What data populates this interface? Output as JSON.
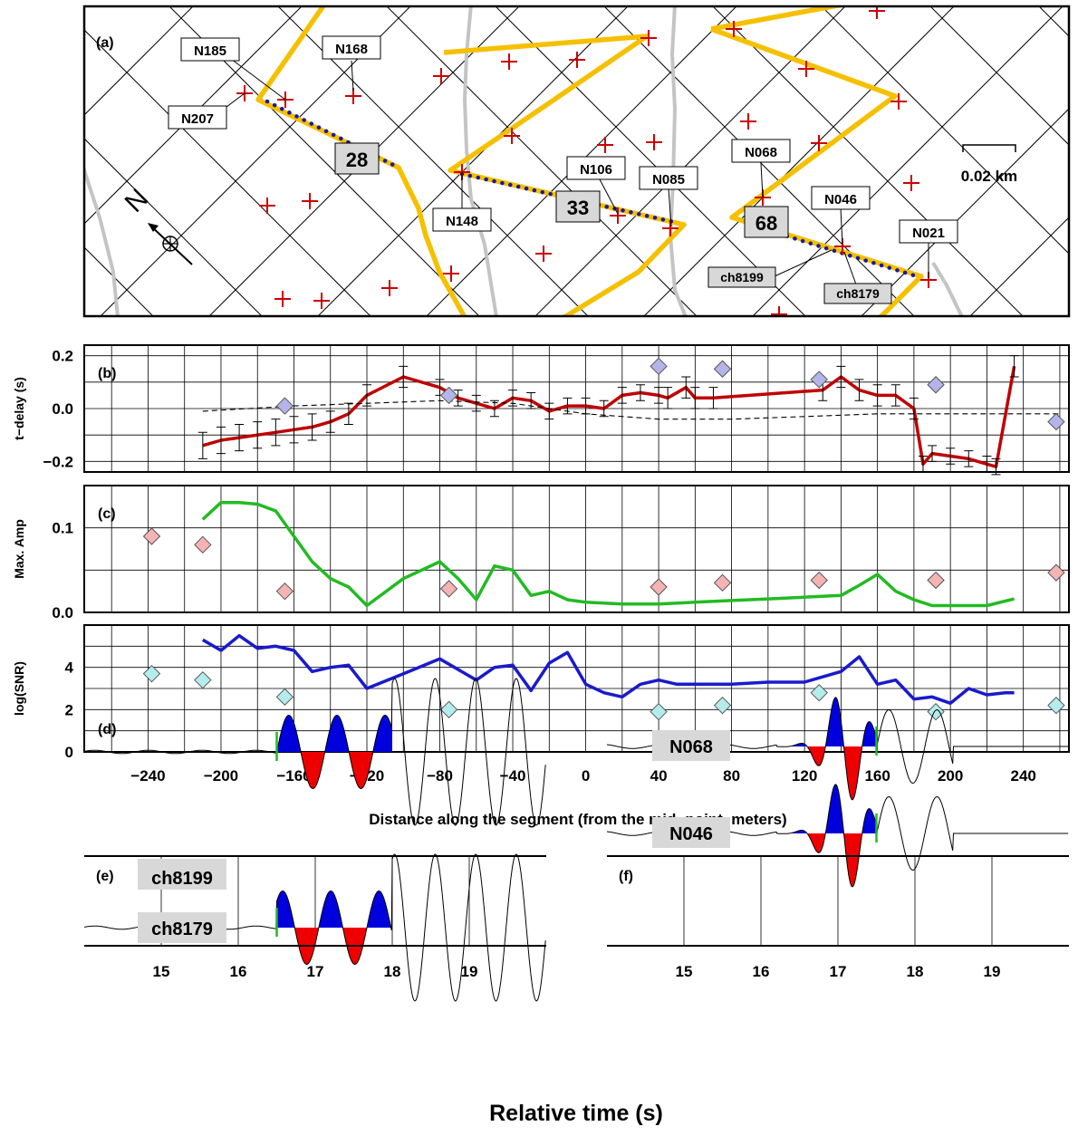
{
  "figure": {
    "panel_labels": [
      "(a)",
      "(b)",
      "(c)",
      "(d)",
      "(e)",
      "(f)"
    ],
    "xlabel_distance": "Distance along the segment (from the mid−point, meters)",
    "xlabel_time": "Relative time (s)"
  },
  "map": {
    "scale_label": "0.02 km",
    "north_label": "N",
    "segment_numbers": [
      "28",
      "33",
      "68"
    ],
    "station_labels": [
      "N185",
      "N168",
      "N207",
      "N148",
      "N106",
      "N085",
      "N068",
      "N046",
      "N021"
    ],
    "channel_labels": [
      "ch8199",
      "ch8179"
    ],
    "colors": {
      "cable": "#f5c000",
      "segment": "#1a1aa0",
      "node": "#cc0000",
      "road": "#c4c4c4",
      "grid": "#000000"
    }
  },
  "chart_data": [
    {
      "type": "line",
      "panel": "(b)",
      "ylabel": "t−delay (s)",
      "xlim": [
        -275,
        265
      ],
      "ylim": [
        -0.24,
        0.24
      ],
      "xticks": [
        -240,
        -200,
        -160,
        -120,
        -80,
        -40,
        0,
        40,
        80,
        120,
        160,
        200,
        240
      ],
      "yticks": [
        -0.2,
        0.0,
        0.2
      ],
      "ytick_labels": [
        "−0.2",
        "0.0",
        "0.2"
      ],
      "series": [
        {
          "style": "line",
          "color": "#c00000",
          "x": [
            -210,
            -200,
            -190,
            -180,
            -170,
            -160,
            -150,
            -140,
            -130,
            -120,
            -100,
            -80,
            -70,
            -60,
            -50,
            -40,
            -30,
            -20,
            -10,
            0,
            10,
            20,
            30,
            40,
            45,
            55,
            60,
            70,
            130,
            140,
            150,
            160,
            170,
            180,
            185,
            190,
            200,
            210,
            220,
            225,
            235
          ],
          "y": [
            -0.14,
            -0.12,
            -0.11,
            -0.1,
            -0.09,
            -0.08,
            -0.07,
            -0.05,
            -0.02,
            0.05,
            0.12,
            0.08,
            0.04,
            0.02,
            0.0,
            0.04,
            0.03,
            -0.01,
            0.01,
            0.01,
            0.0,
            0.05,
            0.06,
            0.05,
            0.04,
            0.08,
            0.04,
            0.04,
            0.07,
            0.12,
            0.07,
            0.05,
            0.05,
            0.0,
            -0.21,
            -0.17,
            -0.18,
            -0.19,
            -0.21,
            -0.22,
            0.16
          ]
        },
        {
          "style": "errorbar",
          "color": "#000000",
          "x": [
            -210,
            -200,
            -190,
            -180,
            -170,
            -160,
            -150,
            -140,
            -130,
            -120,
            -100,
            -80,
            -70,
            -60,
            -50,
            -40,
            -30,
            -20,
            -10,
            0,
            10,
            20,
            30,
            40,
            45,
            55,
            60,
            70,
            130,
            140,
            150,
            160,
            170,
            180,
            185,
            190,
            200,
            210,
            220,
            225,
            235
          ],
          "y": [
            -0.14,
            -0.12,
            -0.11,
            -0.1,
            -0.09,
            -0.08,
            -0.07,
            -0.05,
            -0.02,
            0.05,
            0.12,
            0.08,
            0.04,
            0.02,
            0.0,
            0.04,
            0.03,
            -0.01,
            0.01,
            0.01,
            0.0,
            0.05,
            0.06,
            0.05,
            0.04,
            0.08,
            0.04,
            0.04,
            0.07,
            0.12,
            0.07,
            0.05,
            0.05,
            0.0,
            -0.21,
            -0.17,
            -0.18,
            -0.19,
            -0.21,
            -0.22,
            0.16
          ],
          "err": [
            0.05,
            0.05,
            0.05,
            0.05,
            0.05,
            0.05,
            0.05,
            0.04,
            0.04,
            0.04,
            0.04,
            0.03,
            0.03,
            0.03,
            0.03,
            0.03,
            0.03,
            0.03,
            0.03,
            0.03,
            0.03,
            0.03,
            0.03,
            0.03,
            0.04,
            0.04,
            0.04,
            0.04,
            0.04,
            0.04,
            0.04,
            0.04,
            0.04,
            0.04,
            0.03,
            0.03,
            0.03,
            0.03,
            0.03,
            0.03,
            0.04
          ]
        },
        {
          "style": "dashed",
          "color": "#000000",
          "x": [
            -210,
            -160,
            -120,
            -80,
            -40,
            0,
            40,
            80,
            120,
            160,
            200,
            240,
            260
          ],
          "y": [
            -0.01,
            0.01,
            0.02,
            0.03,
            0.02,
            -0.02,
            -0.04,
            -0.04,
            -0.03,
            -0.02,
            -0.02,
            -0.02,
            -0.02
          ]
        },
        {
          "style": "diamond",
          "color": "#b4b4e8",
          "x": [
            -165,
            -75,
            40,
            75,
            128,
            192,
            258
          ],
          "y": [
            0.01,
            0.05,
            0.16,
            0.15,
            0.11,
            0.09,
            -0.05
          ]
        }
      ]
    },
    {
      "type": "line",
      "panel": "(c)",
      "ylabel": "Max. Amp",
      "xlim": [
        -275,
        265
      ],
      "ylim": [
        0,
        0.15
      ],
      "yticks": [
        0.0,
        0.1
      ],
      "ytick_labels": [
        "0.0",
        "0.1"
      ],
      "series": [
        {
          "style": "line",
          "color": "#22bb22",
          "x": [
            -210,
            -200,
            -190,
            -180,
            -170,
            -160,
            -150,
            -140,
            -130,
            -120,
            -100,
            -80,
            -70,
            -60,
            -50,
            -40,
            -30,
            -20,
            -10,
            0,
            20,
            40,
            60,
            80,
            100,
            120,
            140,
            150,
            160,
            170,
            180,
            190,
            200,
            210,
            220,
            235
          ],
          "y": [
            0.11,
            0.13,
            0.13,
            0.128,
            0.12,
            0.09,
            0.06,
            0.04,
            0.03,
            0.008,
            0.04,
            0.06,
            0.04,
            0.015,
            0.055,
            0.05,
            0.02,
            0.025,
            0.015,
            0.012,
            0.01,
            0.01,
            0.012,
            0.014,
            0.016,
            0.018,
            0.02,
            0.032,
            0.045,
            0.025,
            0.015,
            0.008,
            0.008,
            0.008,
            0.008,
            0.016
          ]
        },
        {
          "style": "diamond",
          "color": "#f4b4b4",
          "x": [
            -238,
            -210,
            -165,
            -75,
            40,
            75,
            128,
            192,
            258
          ],
          "y": [
            0.09,
            0.08,
            0.025,
            0.028,
            0.03,
            0.035,
            0.038,
            0.038,
            0.047
          ]
        }
      ]
    },
    {
      "type": "line",
      "panel": "(d)",
      "ylabel": "log(SNR)",
      "xlim": [
        -275,
        265
      ],
      "ylim": [
        0,
        6
      ],
      "xticks": [
        -240,
        -200,
        -160,
        -120,
        -80,
        -40,
        0,
        40,
        80,
        120,
        160,
        200,
        240
      ],
      "yticks": [
        0,
        2,
        4
      ],
      "ytick_labels": [
        "0",
        "2",
        "4"
      ],
      "series": [
        {
          "style": "line",
          "color": "#1a1acc",
          "x": [
            -210,
            -200,
            -190,
            -180,
            -170,
            -160,
            -150,
            -140,
            -130,
            -120,
            -100,
            -80,
            -60,
            -50,
            -40,
            -30,
            -20,
            -10,
            0,
            10,
            20,
            30,
            40,
            50,
            60,
            80,
            100,
            120,
            140,
            150,
            160,
            170,
            180,
            190,
            200,
            210,
            220,
            230,
            235
          ],
          "y": [
            5.3,
            4.8,
            5.5,
            4.9,
            5.0,
            4.8,
            3.8,
            4.0,
            4.1,
            3.0,
            3.7,
            4.4,
            3.4,
            4.0,
            4.1,
            2.9,
            4.2,
            4.7,
            3.2,
            2.8,
            2.6,
            3.2,
            3.4,
            3.2,
            3.2,
            3.2,
            3.3,
            3.3,
            3.8,
            4.5,
            3.2,
            3.4,
            2.5,
            2.6,
            2.3,
            3.0,
            2.7,
            2.8,
            2.8
          ]
        },
        {
          "style": "diamond",
          "color": "#b4ecec",
          "x": [
            -238,
            -210,
            -165,
            -75,
            40,
            75,
            128,
            192,
            258
          ],
          "y": [
            3.7,
            3.4,
            2.6,
            2.0,
            1.9,
            2.2,
            2.8,
            1.9,
            2.2
          ]
        }
      ]
    },
    {
      "type": "line",
      "panel": "(e)",
      "xlim": [
        14.0,
        20.0
      ],
      "xticks": [
        15,
        16,
        17,
        18,
        19
      ],
      "traces": [
        "ch8199",
        "ch8179"
      ],
      "pick_time": 16.5,
      "window": [
        16.5,
        18.0
      ]
    },
    {
      "type": "line",
      "panel": "(f)",
      "xlim": [
        14.0,
        20.0
      ],
      "xticks": [
        15,
        16,
        17,
        18,
        19
      ],
      "traces": [
        "N068",
        "N046"
      ],
      "pick_time": 17.5,
      "window": [
        16.2,
        17.5
      ]
    }
  ]
}
